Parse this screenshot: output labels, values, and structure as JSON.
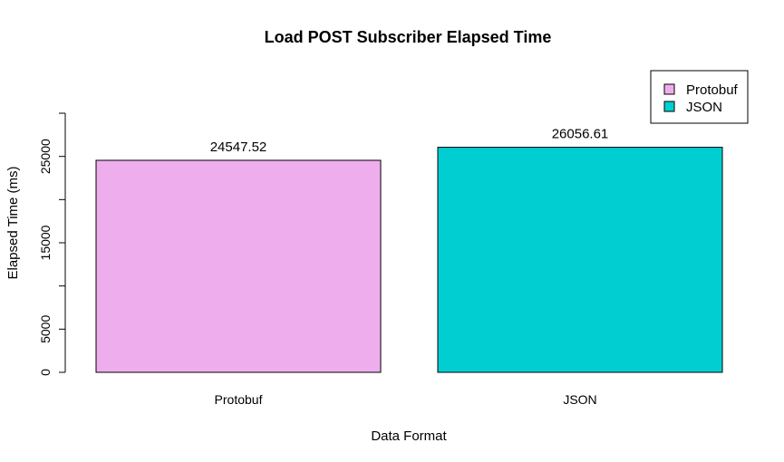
{
  "chart_data": {
    "type": "bar",
    "title": "Load POST Subscriber Elapsed Time",
    "xlabel": "Data Format",
    "ylabel": "Elapsed Time (ms)",
    "categories": [
      "Protobuf",
      "JSON"
    ],
    "values": [
      24547.52,
      26056.61
    ],
    "data_labels": [
      "24547.52",
      "26056.61"
    ],
    "colors": [
      "#EEAEEE",
      "#00CED1"
    ],
    "ylim": [
      0,
      30000
    ],
    "yticks": [
      0,
      5000,
      10000,
      15000,
      20000,
      25000,
      30000
    ],
    "yticklabels": [
      "0",
      "5000",
      "",
      "15000",
      "",
      "25000",
      ""
    ],
    "legend": {
      "position": "top-right",
      "entries": [
        "Protobuf",
        "JSON"
      ]
    },
    "grid": false
  }
}
